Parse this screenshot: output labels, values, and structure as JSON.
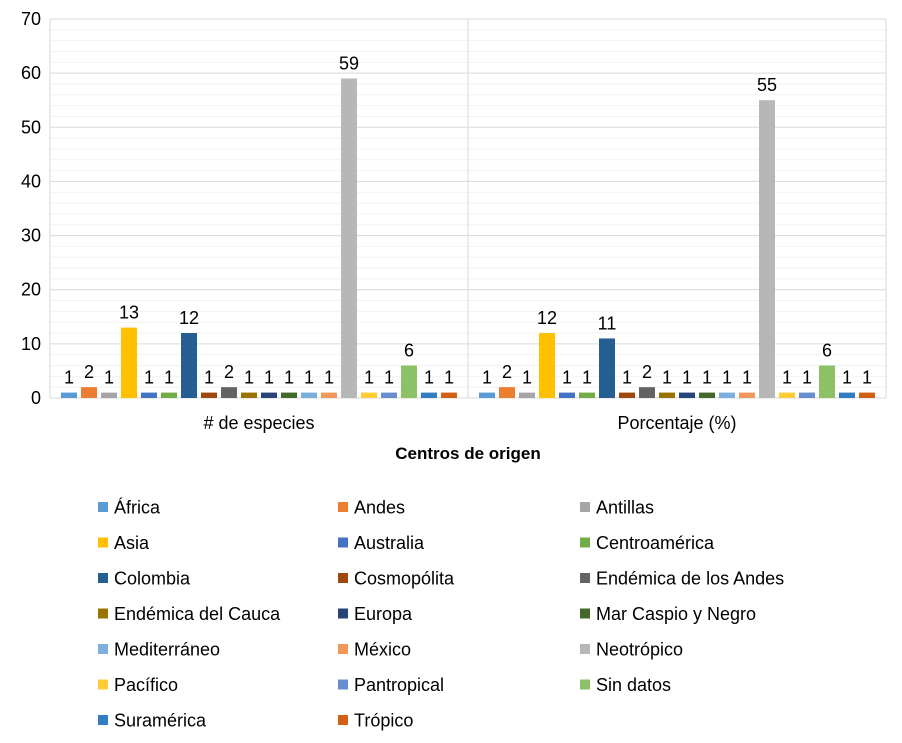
{
  "chart_data": {
    "type": "bar",
    "title": "",
    "xlabel": "Centros de origen",
    "ylabel": "",
    "ylim": [
      0,
      70
    ],
    "yticks": [
      0,
      10,
      20,
      30,
      40,
      50,
      60,
      70
    ],
    "grid": true,
    "legend_position": "bottom",
    "categories": [
      "# de especies",
      "Porcentaje (%)"
    ],
    "series": [
      {
        "name": "África",
        "color": "#5B9BD5",
        "values": [
          1,
          1
        ],
        "labels": [
          "1",
          "1"
        ]
      },
      {
        "name": "Andes",
        "color": "#ED7D31",
        "values": [
          2,
          2
        ],
        "labels": [
          "2",
          "2"
        ]
      },
      {
        "name": "Antillas",
        "color": "#A5A5A5",
        "values": [
          1,
          1
        ],
        "labels": [
          "1",
          "1"
        ]
      },
      {
        "name": "Asia",
        "color": "#FFC000",
        "values": [
          13,
          12
        ],
        "labels": [
          "13",
          "12"
        ]
      },
      {
        "name": "Australia",
        "color": "#4472C4",
        "values": [
          1,
          1
        ],
        "labels": [
          "1",
          "1"
        ]
      },
      {
        "name": "Centroamérica",
        "color": "#70AD47",
        "values": [
          1,
          1
        ],
        "labels": [
          "1",
          "1"
        ]
      },
      {
        "name": "Colombia",
        "color": "#255E91",
        "values": [
          12,
          11
        ],
        "labels": [
          "12",
          "11"
        ]
      },
      {
        "name": "Cosmopólita",
        "color": "#9E480E",
        "values": [
          1,
          1
        ],
        "labels": [
          "1",
          "1"
        ]
      },
      {
        "name": "Endémica de los Andes",
        "color": "#636363",
        "values": [
          2,
          2
        ],
        "labels": [
          "2",
          "2"
        ]
      },
      {
        "name": "Endémica del Cauca",
        "color": "#997300",
        "values": [
          1,
          1
        ],
        "labels": [
          "1",
          "1"
        ]
      },
      {
        "name": "Europa",
        "color": "#264478",
        "values": [
          1,
          1
        ],
        "labels": [
          "1",
          "1"
        ]
      },
      {
        "name": "Mar Caspio y Negro",
        "color": "#43682B",
        "values": [
          1,
          1
        ],
        "labels": [
          "1",
          "1"
        ]
      },
      {
        "name": "Mediterráneo",
        "color": "#7CAFDD",
        "values": [
          1,
          1
        ],
        "labels": [
          "1",
          "1"
        ]
      },
      {
        "name": "México",
        "color": "#F1975A",
        "values": [
          1,
          1
        ],
        "labels": [
          "1",
          "1"
        ]
      },
      {
        "name": "Neotrópico",
        "color": "#B7B7B7",
        "values": [
          59,
          55
        ],
        "labels": [
          "59",
          "55"
        ]
      },
      {
        "name": "Pacífico",
        "color": "#FFCD33",
        "values": [
          1,
          1
        ],
        "labels": [
          "1",
          "1"
        ]
      },
      {
        "name": "Pantropical",
        "color": "#698ED0",
        "values": [
          1,
          1
        ],
        "labels": [
          "1",
          "1"
        ]
      },
      {
        "name": "Sin datos",
        "color": "#8CC168",
        "values": [
          6,
          6
        ],
        "labels": [
          "6",
          "6"
        ]
      },
      {
        "name": "Suramérica",
        "color": "#327DC2",
        "values": [
          1,
          1
        ],
        "labels": [
          "1",
          "1"
        ]
      },
      {
        "name": "Trópico",
        "color": "#D26012",
        "values": [
          1,
          1
        ],
        "labels": [
          "1",
          "1"
        ]
      }
    ]
  }
}
